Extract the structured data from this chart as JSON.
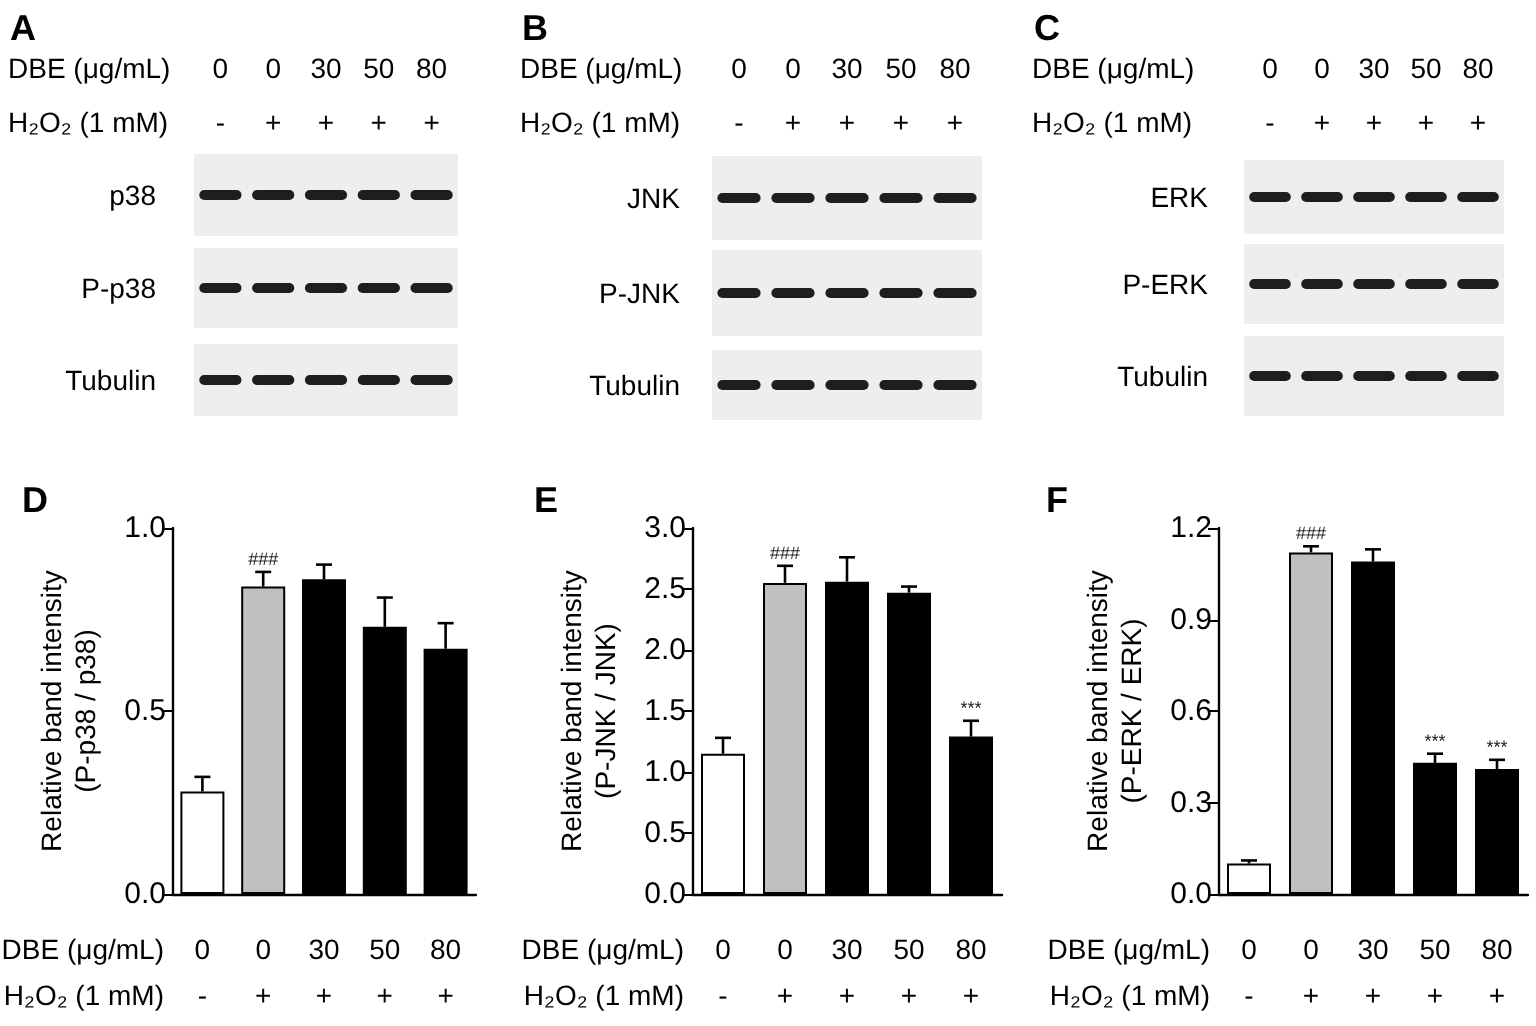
{
  "chart_data": [
    {
      "type": "other",
      "title": "A",
      "xlabel": "DBE (μg/mL)\nH₂O₂ (1 mM)",
      "categories": [
        "0\n-",
        "0\n+",
        "30\n+",
        "50\n+",
        "80\n+"
      ],
      "annotations": [
        "p38",
        "P-p38",
        "Tubulin"
      ]
    },
    {
      "type": "other",
      "title": "B",
      "xlabel": "DBE (μg/mL)\nH₂O₂ (1 mM)",
      "categories": [
        "0\n-",
        "0\n+",
        "30\n+",
        "50\n+",
        "80\n+"
      ],
      "annotations": [
        "JNK",
        "P-JNK",
        "Tubulin"
      ]
    },
    {
      "type": "other",
      "title": "C",
      "xlabel": "DBE (μg/mL)\nH₂O₂ (1 mM)",
      "categories": [
        "0\n-",
        "0\n+",
        "30\n+",
        "50\n+",
        "80\n+"
      ],
      "annotations": [
        "ERK",
        "P-ERK",
        "Tubulin"
      ]
    },
    {
      "type": "bar",
      "title": "D",
      "xlabel": "DBE (μg/mL)\nH₂O₂ (1 mM)",
      "ylabel": "Relative band intensity\n(P-p38 / p38)",
      "categories": [
        "0\n-",
        "0\n+",
        "30\n+",
        "50\n+",
        "80\n+"
      ],
      "values": [
        0.28,
        0.84,
        0.86,
        0.73,
        0.67
      ],
      "colors": [
        "#ffffff",
        "#c0c0c0",
        "#000000",
        "#000000",
        "#000000"
      ],
      "errors": [
        [
          0.28,
          0.32
        ],
        [
          0.84,
          0.88
        ],
        [
          0.86,
          0.9
        ],
        [
          0.73,
          0.81
        ],
        [
          0.67,
          0.74
        ]
      ],
      "ylim": [
        0,
        1
      ],
      "yticks": [
        {
          "value": 0,
          "label": "0.0"
        },
        0.5,
        {
          "value": 1,
          "label": "1.0"
        }
      ],
      "annotations": [
        {
          "text": "###",
          "x": "0\n+",
          "y": 0.88
        }
      ]
    },
    {
      "type": "bar",
      "title": "E",
      "xlabel": "DBE (μg/mL)\nH₂O₂ (1 mM)",
      "ylabel": "Relative band intensity\n(P-JNK / JNK)",
      "categories": [
        "0\n-",
        "0\n+",
        "30\n+",
        "50\n+",
        "80\n+"
      ],
      "values": [
        1.15,
        2.55,
        2.56,
        2.47,
        1.29
      ],
      "colors": [
        "#ffffff",
        "#c0c0c0",
        "#000000",
        "#000000",
        "#000000"
      ],
      "errors": [
        [
          1.15,
          1.28
        ],
        [
          2.55,
          2.69
        ],
        [
          2.56,
          2.76
        ],
        [
          2.47,
          2.52
        ],
        [
          1.29,
          1.42
        ]
      ],
      "ylim": [
        0,
        3
      ],
      "yticks": [
        {
          "value": 0,
          "label": "0.0"
        },
        0.5,
        {
          "value": 1,
          "label": "1.0"
        },
        1.5,
        {
          "value": 2,
          "label": "2.0"
        },
        2.5,
        {
          "value": 3,
          "label": "3.0"
        }
      ],
      "annotations": [
        {
          "text": "###",
          "x": "0\n+",
          "y": 2.69
        },
        {
          "text": "***",
          "x": "80\n+",
          "y": 1.42
        }
      ]
    },
    {
      "type": "bar",
      "title": "F",
      "xlabel": "DBE (μg/mL)\nH₂O₂ (1 mM)",
      "ylabel": "Relative band intensity\n(P-ERK / ERK)",
      "categories": [
        "0\n-",
        "0\n+",
        "30\n+",
        "50\n+",
        "80\n+"
      ],
      "values": [
        0.1,
        1.12,
        1.09,
        0.43,
        0.41
      ],
      "colors": [
        "#ffffff",
        "#c0c0c0",
        "#000000",
        "#000000",
        "#000000"
      ],
      "errors": [
        [
          0.1,
          0.11
        ],
        [
          1.12,
          1.14
        ],
        [
          1.09,
          1.13
        ],
        [
          0.43,
          0.46
        ],
        [
          0.41,
          0.44
        ]
      ],
      "ylim": [
        0,
        1.2
      ],
      "yticks": [
        {
          "value": 0,
          "label": "0.0"
        },
        0.3,
        0.6,
        0.9,
        1.2
      ],
      "annotations": [
        {
          "text": "###",
          "x": "0\n+",
          "y": 1.14
        },
        {
          "text": "***",
          "x": "50\n+",
          "y": 0.46
        },
        {
          "text": "***",
          "x": "80\n+",
          "y": 0.44
        }
      ]
    }
  ]
}
